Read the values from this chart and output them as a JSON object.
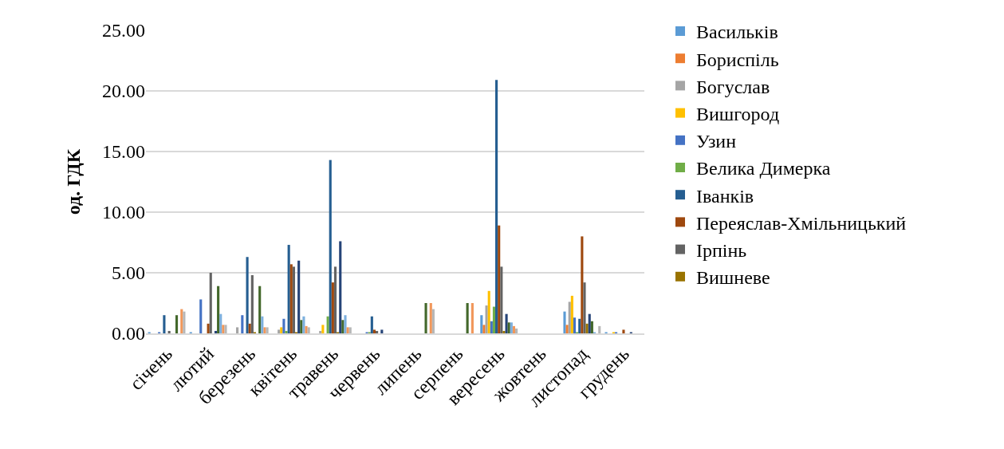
{
  "chart_data": {
    "type": "bar",
    "ylabel": "од. ГДК",
    "categories": [
      "січень",
      "лютий",
      "березень",
      "квітень",
      "травень",
      "червень",
      "липень",
      "серпень",
      "вересень",
      "жовтень",
      "листопад",
      "грудень"
    ],
    "series": [
      {
        "name": "Васильків",
        "color": "#5b9bd5",
        "values": [
          0.1,
          0.1,
          null,
          null,
          null,
          null,
          null,
          null,
          1.5,
          null,
          1.8,
          0.1
        ]
      },
      {
        "name": "Бориспіль",
        "color": "#ed7d31",
        "values": [
          null,
          null,
          null,
          null,
          null,
          null,
          null,
          null,
          0.7,
          null,
          0.7,
          null
        ]
      },
      {
        "name": "Богуслав",
        "color": "#a5a5a5",
        "values": [
          null,
          null,
          0.5,
          0.3,
          0.2,
          null,
          null,
          null,
          2.3,
          null,
          2.6,
          null
        ]
      },
      {
        "name": "Вишгород",
        "color": "#ffc000",
        "values": [
          null,
          null,
          null,
          0.5,
          0.7,
          null,
          null,
          null,
          3.5,
          null,
          3.1,
          0.1
        ]
      },
      {
        "name": "Узин",
        "color": "#4472c4",
        "values": [
          0.1,
          2.8,
          1.5,
          1.2,
          null,
          0.1,
          null,
          null,
          1.0,
          null,
          1.3,
          0.1
        ]
      },
      {
        "name": "Велика Димерка",
        "color": "#70ad47",
        "values": [
          null,
          null,
          null,
          0.2,
          1.4,
          0.1,
          null,
          null,
          2.2,
          null,
          0.1,
          null
        ]
      },
      {
        "name": "Іванків",
        "color": "#255e91",
        "values": [
          1.5,
          null,
          6.3,
          7.3,
          14.3,
          1.4,
          null,
          null,
          20.9,
          null,
          1.2,
          null
        ]
      },
      {
        "name": "Переяслав-Хмільницький",
        "color": "#9e480e",
        "values": [
          null,
          0.8,
          0.8,
          5.7,
          4.2,
          0.3,
          null,
          null,
          8.9,
          null,
          8.0,
          0.3
        ]
      },
      {
        "name": "Ірпінь",
        "color": "#636363",
        "values": [
          0.2,
          5.0,
          4.8,
          5.5,
          5.5,
          0.2,
          null,
          null,
          5.5,
          null,
          4.2,
          null
        ]
      },
      {
        "name": "Вишневе",
        "color": "#997300",
        "values": [
          null,
          null,
          0.1,
          0.1,
          0.1,
          null,
          null,
          null,
          0.2,
          null,
          0.8,
          null
        ]
      },
      {
        "color": "#264478",
        "values": [
          null,
          0.2,
          null,
          6.0,
          7.6,
          0.3,
          null,
          null,
          1.6,
          null,
          1.6,
          0.1
        ]
      },
      {
        "color": "#43682b",
        "values": [
          1.5,
          3.9,
          3.9,
          1.1,
          1.1,
          null,
          2.5,
          2.5,
          0.9,
          null,
          1.0,
          null
        ]
      },
      {
        "color": "#7cafdd",
        "values": [
          null,
          1.6,
          1.4,
          1.4,
          1.5,
          null,
          null,
          null,
          0.9,
          null,
          0.1,
          null
        ]
      },
      {
        "color": "#f1975a",
        "values": [
          2.0,
          0.7,
          0.5,
          0.6,
          0.5,
          null,
          2.5,
          2.5,
          0.6,
          null,
          null,
          null
        ]
      },
      {
        "color": "#b7b7b7",
        "values": [
          1.8,
          0.7,
          0.5,
          0.5,
          0.5,
          null,
          2.0,
          null,
          0.4,
          null,
          0.6,
          null
        ]
      }
    ],
    "ylim": [
      0,
      25
    ],
    "yticks": [
      {
        "value": 0,
        "label": "0.00"
      },
      {
        "value": 5,
        "label": "5.00"
      },
      {
        "value": 10,
        "label": "10.00"
      },
      {
        "value": 15,
        "label": "15.00"
      },
      {
        "value": 20,
        "label": "20.00"
      },
      {
        "value": 25,
        "label": "25.00"
      }
    ],
    "grid": "y",
    "legend": "right"
  }
}
